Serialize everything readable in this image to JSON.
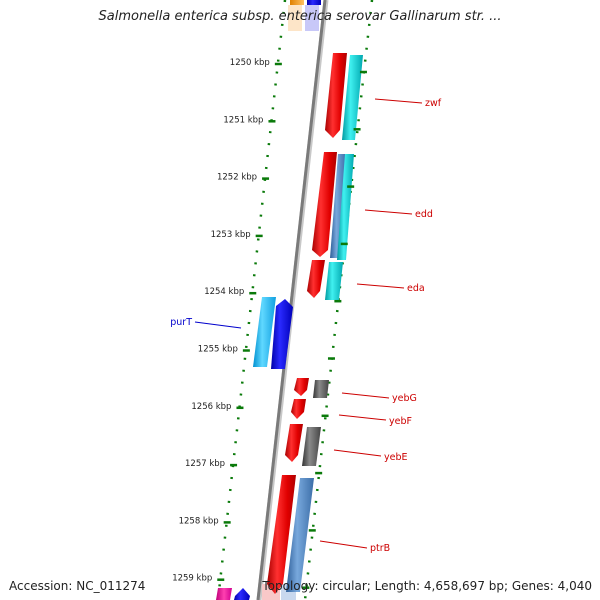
{
  "title": "Salmonella enterica subsp. enterica serovar Gallinarum str. ...",
  "footer": {
    "accession": "Accession: NC_011274",
    "summary": "Topology: circular; Length: 4,658,697 bp; Genes: 4,040"
  },
  "colors": {
    "backbone": "#8a8a8a",
    "tick": "#0a7a0a",
    "forward_label": "#cc0000",
    "reverse_label": "#0000cc",
    "gene_red": "#ee0000",
    "gene_cyan": "#00c8cc",
    "gene_blue": "#0000ee",
    "gene_lightblue": "#20b0f0",
    "gene_steel": "#4f86c0",
    "gene_gray": "#555555"
  },
  "ticks": [
    {
      "label": "1250 kbp"
    },
    {
      "label": "1251 kbp"
    },
    {
      "label": "1252 kbp"
    },
    {
      "label": "1253 kbp"
    },
    {
      "label": "1254 kbp"
    },
    {
      "label": "1255 kbp"
    },
    {
      "label": "1256 kbp"
    },
    {
      "label": "1257 kbp"
    },
    {
      "label": "1258 kbp"
    },
    {
      "label": "1259 kbp"
    }
  ],
  "gene_labels": [
    {
      "name": "zwf",
      "strand": "forward"
    },
    {
      "name": "edd",
      "strand": "forward"
    },
    {
      "name": "eda",
      "strand": "forward"
    },
    {
      "name": "purT",
      "strand": "reverse"
    },
    {
      "name": "yebG",
      "strand": "forward"
    },
    {
      "name": "yebF",
      "strand": "forward"
    },
    {
      "name": "yebE",
      "strand": "forward"
    },
    {
      "name": "ptrB",
      "strand": "forward"
    }
  ]
}
